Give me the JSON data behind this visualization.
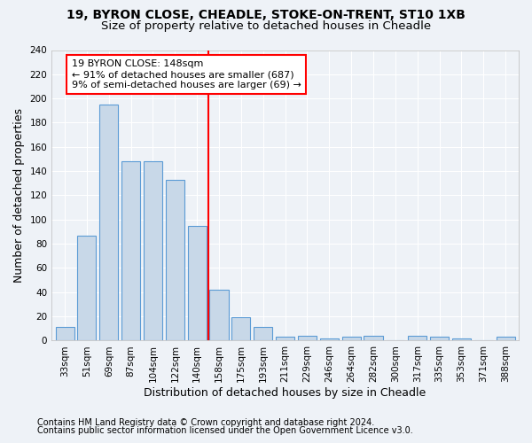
{
  "title1": "19, BYRON CLOSE, CHEADLE, STOKE-ON-TRENT, ST10 1XB",
  "title2": "Size of property relative to detached houses in Cheadle",
  "xlabel": "Distribution of detached houses by size in Cheadle",
  "ylabel": "Number of detached properties",
  "categories": [
    "33sqm",
    "51sqm",
    "69sqm",
    "87sqm",
    "104sqm",
    "122sqm",
    "140sqm",
    "158sqm",
    "175sqm",
    "193sqm",
    "211sqm",
    "229sqm",
    "246sqm",
    "264sqm",
    "282sqm",
    "300sqm",
    "317sqm",
    "335sqm",
    "353sqm",
    "371sqm",
    "388sqm"
  ],
  "values": [
    11,
    87,
    195,
    148,
    148,
    133,
    95,
    42,
    19,
    11,
    3,
    4,
    2,
    3,
    4,
    0,
    4,
    3,
    2,
    0,
    3
  ],
  "bar_color": "#c8d8e8",
  "bar_edge_color": "#5b9bd5",
  "vline_color": "red",
  "annotation_text": "19 BYRON CLOSE: 148sqm\n← 91% of detached houses are smaller (687)\n9% of semi-detached houses are larger (69) →",
  "annotation_box_color": "white",
  "annotation_box_edge_color": "red",
  "ylim": [
    0,
    240
  ],
  "yticks": [
    0,
    20,
    40,
    60,
    80,
    100,
    120,
    140,
    160,
    180,
    200,
    220,
    240
  ],
  "footer1": "Contains HM Land Registry data © Crown copyright and database right 2024.",
  "footer2": "Contains public sector information licensed under the Open Government Licence v3.0.",
  "bg_color": "#eef2f7",
  "grid_color": "#ffffff",
  "title1_fontsize": 10,
  "title2_fontsize": 9.5,
  "xlabel_fontsize": 9,
  "ylabel_fontsize": 9,
  "tick_fontsize": 7.5,
  "footer_fontsize": 7,
  "annotation_fontsize": 8
}
